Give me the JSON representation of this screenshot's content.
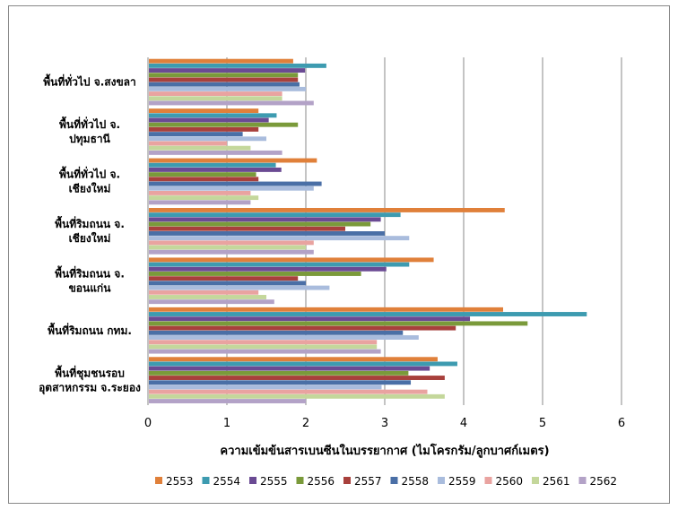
{
  "chart_data": {
    "type": "bar",
    "orientation": "horizontal",
    "title": "",
    "xlabel": "ความเข้มข้นสารเบนซีนในบรรยากาศ (ไมโครกรัม/ลูกบาศก์เมตร)",
    "ylabel": "",
    "xlim": [
      0,
      6
    ],
    "xticks": [
      "0",
      "1",
      "2",
      "3",
      "4",
      "5",
      "6"
    ],
    "grid": true,
    "legend_position": "bottom",
    "categories": [
      [
        "พื้นที่ทั่วไป จ.สงขลา"
      ],
      [
        "พื้นที่ทั่วไป จ.",
        "ปทุมธานี"
      ],
      [
        "พื้นที่ทั่วไป จ.",
        "เชียงใหม่"
      ],
      [
        "พื้นที่ริมถนน จ.",
        "เชียงใหม่"
      ],
      [
        "พื้นที่ริมถนน จ.",
        "ขอนแก่น"
      ],
      [
        "พื้นที่ริมถนน กทม."
      ],
      [
        "พื้นที่ชุมชนรอบ",
        "อุตสาหกรรม จ.ระยอง"
      ]
    ],
    "series": [
      {
        "name": "2553",
        "color": "#E0803A",
        "values": [
          1.84,
          1.4,
          2.14,
          4.52,
          3.62,
          4.5,
          3.67
        ]
      },
      {
        "name": "2554",
        "color": "#3D9BB0",
        "values": [
          2.26,
          1.63,
          1.62,
          3.2,
          3.31,
          5.56,
          3.92
        ]
      },
      {
        "name": "2555",
        "color": "#6A4A93",
        "values": [
          1.99,
          1.53,
          1.69,
          2.95,
          3.02,
          4.08,
          3.57
        ]
      },
      {
        "name": "2556",
        "color": "#7A9A3A",
        "values": [
          1.9,
          1.9,
          1.37,
          2.82,
          2.7,
          4.81,
          3.3
        ]
      },
      {
        "name": "2557",
        "color": "#A8403C",
        "values": [
          1.9,
          1.4,
          1.4,
          2.5,
          1.9,
          3.9,
          3.76
        ]
      },
      {
        "name": "2558",
        "color": "#4A6FA6",
        "values": [
          1.92,
          1.2,
          2.2,
          3.0,
          2.0,
          3.23,
          3.33
        ]
      },
      {
        "name": "2559",
        "color": "#A9BCDD",
        "values": [
          2.0,
          1.5,
          2.1,
          3.31,
          2.3,
          3.43,
          2.96
        ]
      },
      {
        "name": "2560",
        "color": "#E9A3A0",
        "values": [
          1.7,
          1.0,
          1.3,
          2.1,
          1.4,
          2.9,
          3.54
        ]
      },
      {
        "name": "2561",
        "color": "#C4D79B",
        "values": [
          1.7,
          1.3,
          1.4,
          2.0,
          1.5,
          2.9,
          3.76
        ]
      },
      {
        "name": "2562",
        "color": "#B3A2C7",
        "values": [
          2.1,
          1.7,
          1.3,
          2.1,
          1.6,
          2.95,
          2.0
        ]
      }
    ]
  }
}
